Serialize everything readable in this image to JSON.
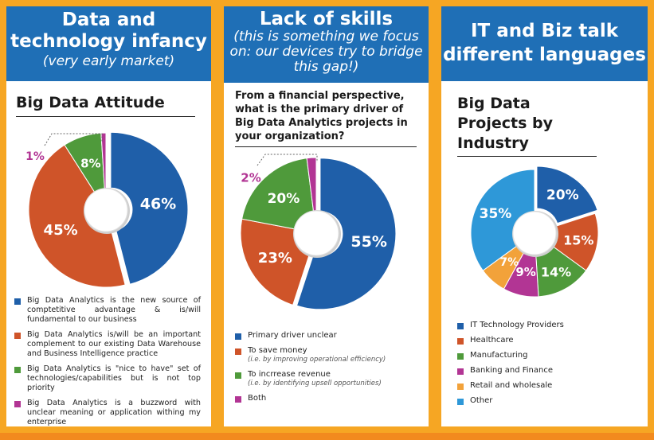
{
  "panels": [
    {
      "header_title": "Data and technology infancy",
      "header_subtitle": "(very early market)",
      "section_title": "Big Data Attitude"
    },
    {
      "header_title": "Lack of skills",
      "header_subtitle": "(this is something we focus on: our devices try to bridge this gap!)",
      "question": "From a financial perspective, what is the primary driver of Big Data Analytics projects in your organization?"
    },
    {
      "header_title": "IT and Biz talk different languages",
      "section_title": "Big Data Projects by Industry"
    }
  ],
  "chart_data": [
    {
      "type": "pie",
      "title": "Big Data Attitude",
      "categories": [
        "Big Data Analytics is the new source of comptetitive advantage & is/will fundamental to our business",
        "Big Data Analytics is/will be an important complement to our existing Data Warehouse and Business Intelligence practice",
        "Big Data Analytics is \"nice to have\" set of technologies/capabilities but is not top priority",
        "Big Data Analytics is a buzzword with unclear meaning or application withing my enterprise"
      ],
      "values": [
        46,
        45,
        8,
        1
      ],
      "labels": [
        "46%",
        "45%",
        "8%",
        "1%"
      ],
      "colors": [
        "#1f5fa9",
        "#cf5429",
        "#4f9a3b",
        "#b23594"
      ],
      "legend": "bottom"
    },
    {
      "type": "pie",
      "title": "From a financial perspective, what is the primary driver of Big Data Analytics projects in your organization?",
      "categories": [
        "Primary driver unclear",
        "To save money",
        "To incrrease revenue",
        "Both"
      ],
      "notes": [
        "",
        "(i.e. by improving operational efficiency)",
        "(i.e. by identifying upsell opportunities)",
        ""
      ],
      "values": [
        55,
        23,
        20,
        2
      ],
      "labels": [
        "55%",
        "23%",
        "20%",
        "2%"
      ],
      "colors": [
        "#1f5fa9",
        "#cf5429",
        "#4f9a3b",
        "#b23594"
      ],
      "legend": "bottom"
    },
    {
      "type": "pie",
      "title": "Big Data Projects by Industry",
      "categories": [
        "IT Technology Providers",
        "Healthcare",
        "Manufacturing",
        "Banking and Finance",
        "Retail and wholesale",
        "Other"
      ],
      "values": [
        20,
        15,
        14,
        9,
        7,
        35
      ],
      "labels": [
        "20%",
        "15%",
        "14%",
        "9%",
        "7%",
        "35%"
      ],
      "colors": [
        "#1f5fa9",
        "#cf5429",
        "#4f9a3b",
        "#b23594",
        "#f2a23a",
        "#2e98d8"
      ],
      "legend": "bottom"
    }
  ]
}
